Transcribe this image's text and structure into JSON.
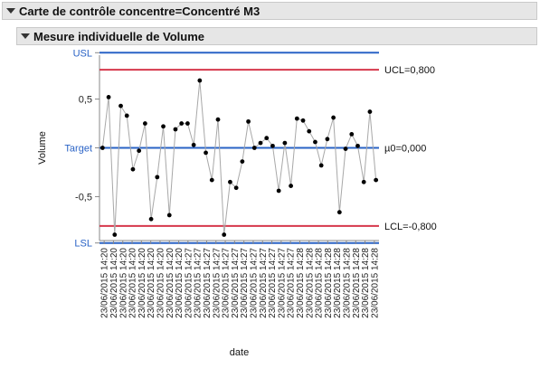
{
  "header": {
    "title": "Carte de contrôle concentre=Concentré M3",
    "subtitle": "Mesure individuelle de Volume"
  },
  "chart_data": {
    "type": "line",
    "xlabel": "date",
    "ylabel": "Volume",
    "ylim": [
      -0.95,
      0.95
    ],
    "y_ticks": [
      {
        "value": 0.5,
        "label": "0,5"
      },
      {
        "value": -0.5,
        "label": "-0,5"
      }
    ],
    "spec_lines": {
      "usl": {
        "value": 0.975,
        "label": "USL"
      },
      "target": {
        "value": 0.0,
        "label": "Target"
      },
      "lsl": {
        "value": -0.975,
        "label": "LSL"
      }
    },
    "control_lines": {
      "ucl": {
        "value": 0.8,
        "label": "UCL=0,800"
      },
      "center": {
        "value": 0.0,
        "label": "µ0=0,000"
      },
      "lcl": {
        "value": -0.8,
        "label": "LCL=-0,800"
      }
    },
    "x_tick_labels": [
      "23/06/2015 14:20",
      "23/06/2015 14:20",
      "23/06/2015 14:20",
      "23/06/2015 14:20",
      "23/06/2015 14:20",
      "23/06/2015 14:20",
      "23/06/2015 14:20",
      "23/06/2015 14:20",
      "23/06/2015 14:20",
      "23/06/2015 14:27",
      "23/06/2015 14:27",
      "23/06/2015 14:27",
      "23/06/2015 14:27",
      "23/06/2015 14:27",
      "23/06/2015 14:27",
      "23/06/2015 14:27",
      "23/06/2015 14:27",
      "23/06/2015 14:27",
      "23/06/2015 14:27",
      "23/06/2015 14:27",
      "23/06/2015 14:27",
      "23/06/2015 14:28",
      "23/06/2015 14:28",
      "23/06/2015 14:28",
      "23/06/2015 14:28",
      "23/06/2015 14:28",
      "23/06/2015 14:28",
      "23/06/2015 14:28",
      "23/06/2015 14:28",
      "23/06/2015 14:28"
    ],
    "values": [
      0.0,
      0.52,
      -0.89,
      0.43,
      0.33,
      -0.22,
      -0.03,
      0.25,
      -0.73,
      -0.3,
      0.22,
      -0.69,
      0.19,
      0.25,
      0.25,
      0.03,
      0.69,
      -0.05,
      -0.33,
      0.29,
      -0.89,
      -0.35,
      -0.41,
      -0.14,
      0.27,
      0.0,
      0.05,
      0.1,
      0.02,
      -0.44,
      0.05,
      -0.39,
      0.3,
      0.28,
      0.17,
      0.06,
      -0.18,
      0.09,
      0.31,
      -0.66,
      -0.01,
      0.14,
      0.02,
      -0.35,
      0.37,
      -0.33
    ],
    "colors": {
      "spec": "#2a63c6",
      "control": "#d6384c",
      "line": "#a8a8a8",
      "point": "#000000",
      "axis": "#888888"
    }
  }
}
